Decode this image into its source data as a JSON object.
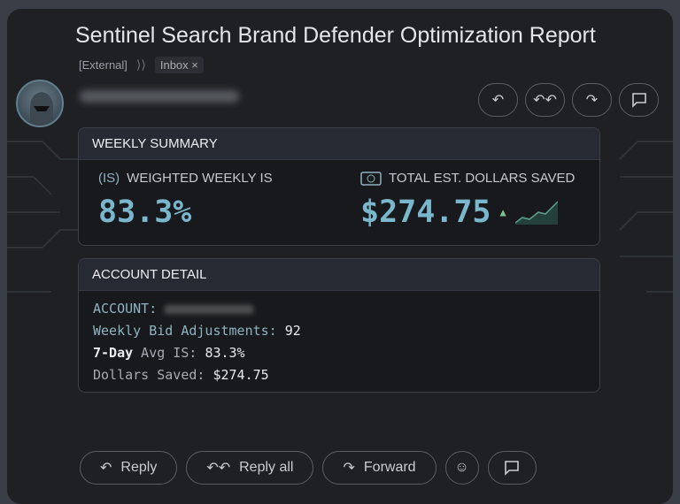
{
  "email": {
    "subject": "Sentinel Search Brand Defender Optimization Report",
    "tag_external": "[External]",
    "label_inbox": "Inbox",
    "label_remove": "×"
  },
  "summary": {
    "header": "WEEKLY SUMMARY",
    "is_icon_text": "(IS)",
    "is_label": "WEIGHTED WEEKLY IS",
    "is_value": "83.3%",
    "dollars_label": "TOTAL EST. DOLLARS SAVED",
    "dollars_value": "$274.75",
    "trend": "up",
    "accent": "#7ab6cc"
  },
  "detail": {
    "header": "ACCOUNT DETAIL",
    "account_label": "ACCOUNT:",
    "bid_label": "Weekly Bid Adjustments:",
    "bid_value": "92",
    "avg_bold": "7-Day",
    "avg_label": " Avg IS:",
    "avg_value": "83.3%",
    "saved_label": "Dollars Saved:",
    "saved_value": "$274.75"
  },
  "actions": {
    "reply": "Reply",
    "reply_all": "Reply all",
    "forward": "Forward"
  }
}
